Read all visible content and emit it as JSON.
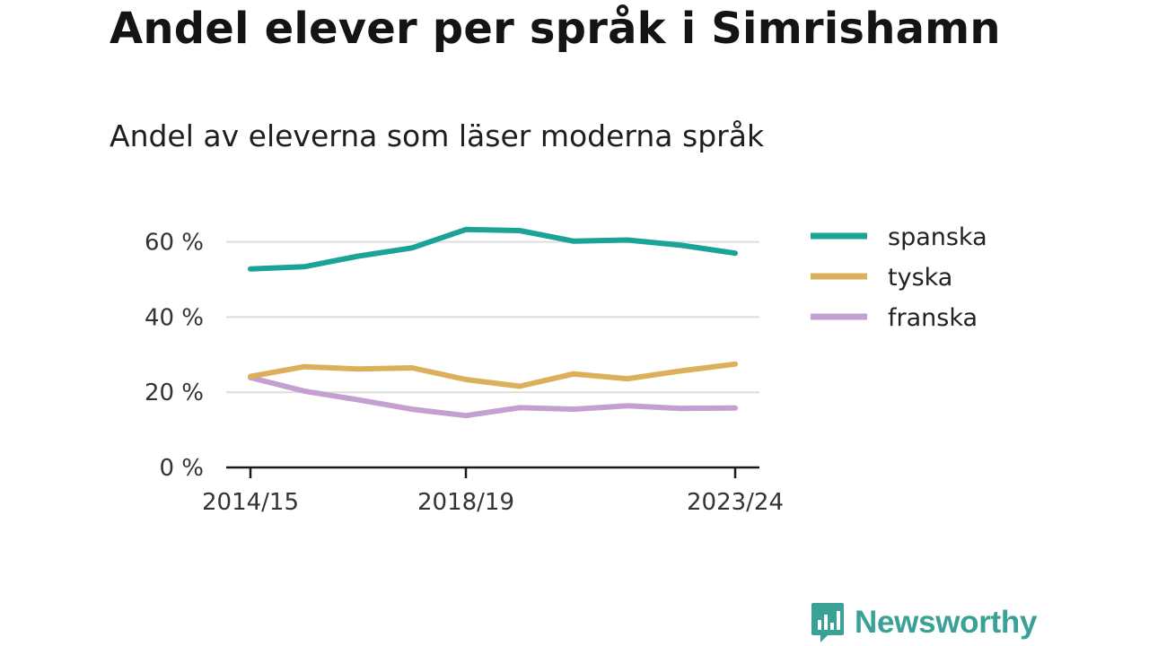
{
  "title": "Andel elever per språk i Simrishamn",
  "subtitle": "Andel av eleverna som läser moderna språk",
  "brand": {
    "name": "Newsworthy",
    "color": "#3aa196",
    "icon": "bar-chart-speech-icon"
  },
  "chart_data": {
    "type": "line",
    "title": "Andel elever per språk i Simrishamn",
    "subtitle": "Andel av eleverna som läser moderna språk",
    "x": [
      "2014/15",
      "2015/16",
      "2016/17",
      "2017/18",
      "2018/19",
      "2019/20",
      "2020/21",
      "2021/22",
      "2022/23",
      "2023/24"
    ],
    "x_tick_labels": [
      "2014/15",
      "2018/19",
      "2023/24"
    ],
    "y_ticks": [
      0,
      20,
      40,
      60
    ],
    "y_tick_labels": [
      "0 %",
      "20 %",
      "40 %",
      "60 %"
    ],
    "ylim": [
      0,
      65
    ],
    "ylabel": "",
    "xlabel": "",
    "grid": true,
    "legend_position": "right",
    "series": [
      {
        "name": "spanska",
        "color": "#1aa396",
        "values": [
          52.8,
          53.4,
          56.2,
          58.4,
          63.3,
          63.0,
          60.2,
          60.5,
          59.1,
          57.0
        ]
      },
      {
        "name": "tyska",
        "color": "#dcb05a",
        "values": [
          24.2,
          26.8,
          26.2,
          26.5,
          23.4,
          21.6,
          24.9,
          23.6,
          25.7,
          27.5
        ]
      },
      {
        "name": "franska",
        "color": "#c49fd1",
        "values": [
          23.9,
          20.3,
          18.0,
          15.5,
          13.8,
          15.9,
          15.5,
          16.4,
          15.7,
          15.8
        ]
      }
    ]
  }
}
